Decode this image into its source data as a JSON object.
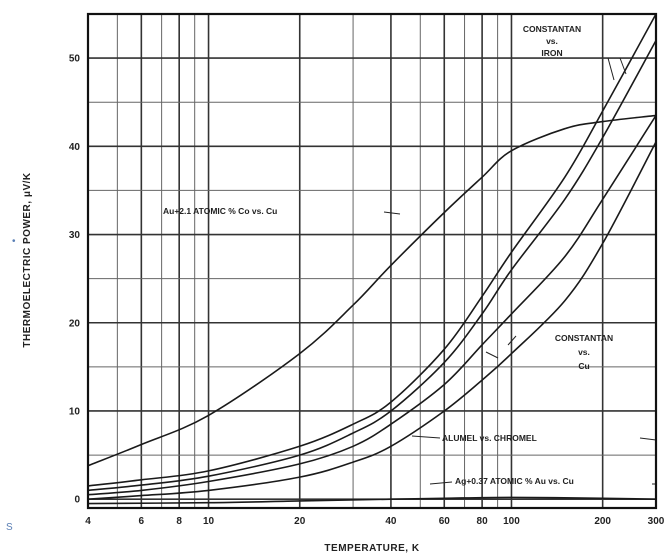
{
  "chart_data": {
    "type": "line",
    "xlabel": "TEMPERATURE, K",
    "ylabel": "THERMOELECTRIC POWER, μV/K",
    "xscale": "log",
    "xlim": [
      4,
      300
    ],
    "ylim": [
      -1,
      55
    ],
    "grid": true,
    "xticks": [
      4,
      6,
      8,
      10,
      20,
      40,
      60,
      80,
      100,
      200,
      300
    ],
    "xtick_labels": [
      "4",
      "6",
      "8",
      "10",
      "20",
      "40",
      "60",
      "80",
      "100",
      "200",
      "300"
    ],
    "yticks": [
      0,
      10,
      20,
      30,
      40,
      50
    ],
    "ytick_labels": [
      "0",
      "10",
      "20",
      "30",
      "40",
      "50"
    ],
    "series": [
      {
        "name": "Au+2.1 ATOMIC % Co vs. Cu",
        "x": [
          4,
          6,
          10,
          20,
          30,
          40,
          60,
          80,
          100,
          150,
          200,
          300
        ],
        "y": [
          3.8,
          6.2,
          9.5,
          16.5,
          22,
          26.5,
          32.5,
          36.5,
          39.5,
          42,
          42.8,
          43.5
        ]
      },
      {
        "name": "CONSTANTAN vs. IRON",
        "x": [
          4,
          6,
          10,
          20,
          30,
          40,
          60,
          80,
          100,
          150,
          200,
          300
        ],
        "y": [
          1.5,
          2.2,
          3.2,
          6,
          8.5,
          11,
          17,
          23,
          28,
          36.5,
          44,
          55
        ]
      },
      {
        "name": "CONSTANTAN vs. Cu",
        "x": [
          4,
          6,
          10,
          20,
          30,
          40,
          60,
          80,
          100,
          150,
          200,
          300
        ],
        "y": [
          1,
          1.6,
          2.6,
          5,
          7.5,
          10,
          15.5,
          21,
          26,
          34,
          41,
          52
        ]
      },
      {
        "name": "ALUMEL vs. CHROMEL",
        "x": [
          4,
          6,
          10,
          20,
          30,
          40,
          60,
          80,
          100,
          150,
          200,
          300
        ],
        "y": [
          0.5,
          1,
          2,
          4,
          6,
          8.5,
          13,
          17.5,
          21,
          27.5,
          34,
          43.5
        ]
      },
      {
        "name": "Ag+0.37 ATOMIC % Au vs. Cu",
        "x": [
          4,
          6,
          10,
          20,
          30,
          40,
          60,
          80,
          100,
          150,
          200,
          300
        ],
        "y": [
          0,
          0.4,
          1,
          2.5,
          4.2,
          6,
          10,
          13.5,
          16.5,
          22.5,
          29,
          40.5
        ]
      },
      {
        "name": "",
        "x": [
          4,
          10,
          20,
          40,
          60,
          100,
          200,
          300
        ],
        "y": [
          -0.5,
          -0.4,
          -0.2,
          0,
          0.1,
          0.2,
          0.1,
          0
        ]
      }
    ],
    "annotations": [
      {
        "lines": [
          "CONSTANTAN",
          "vs.",
          "IRON"
        ]
      },
      {
        "lines": [
          "Au+2.1 ATOMIC % Co vs. Cu"
        ]
      },
      {
        "lines": [
          "CONSTANTAN",
          "vs.",
          "Cu"
        ]
      },
      {
        "lines": [
          "ALUMEL vs. CHROMEL"
        ]
      },
      {
        "lines": [
          "Ag+0.37 ATOMIC % Au vs. Cu"
        ]
      }
    ]
  },
  "stray_marks": {
    "left_mid": "•",
    "left_bottom": "S"
  }
}
